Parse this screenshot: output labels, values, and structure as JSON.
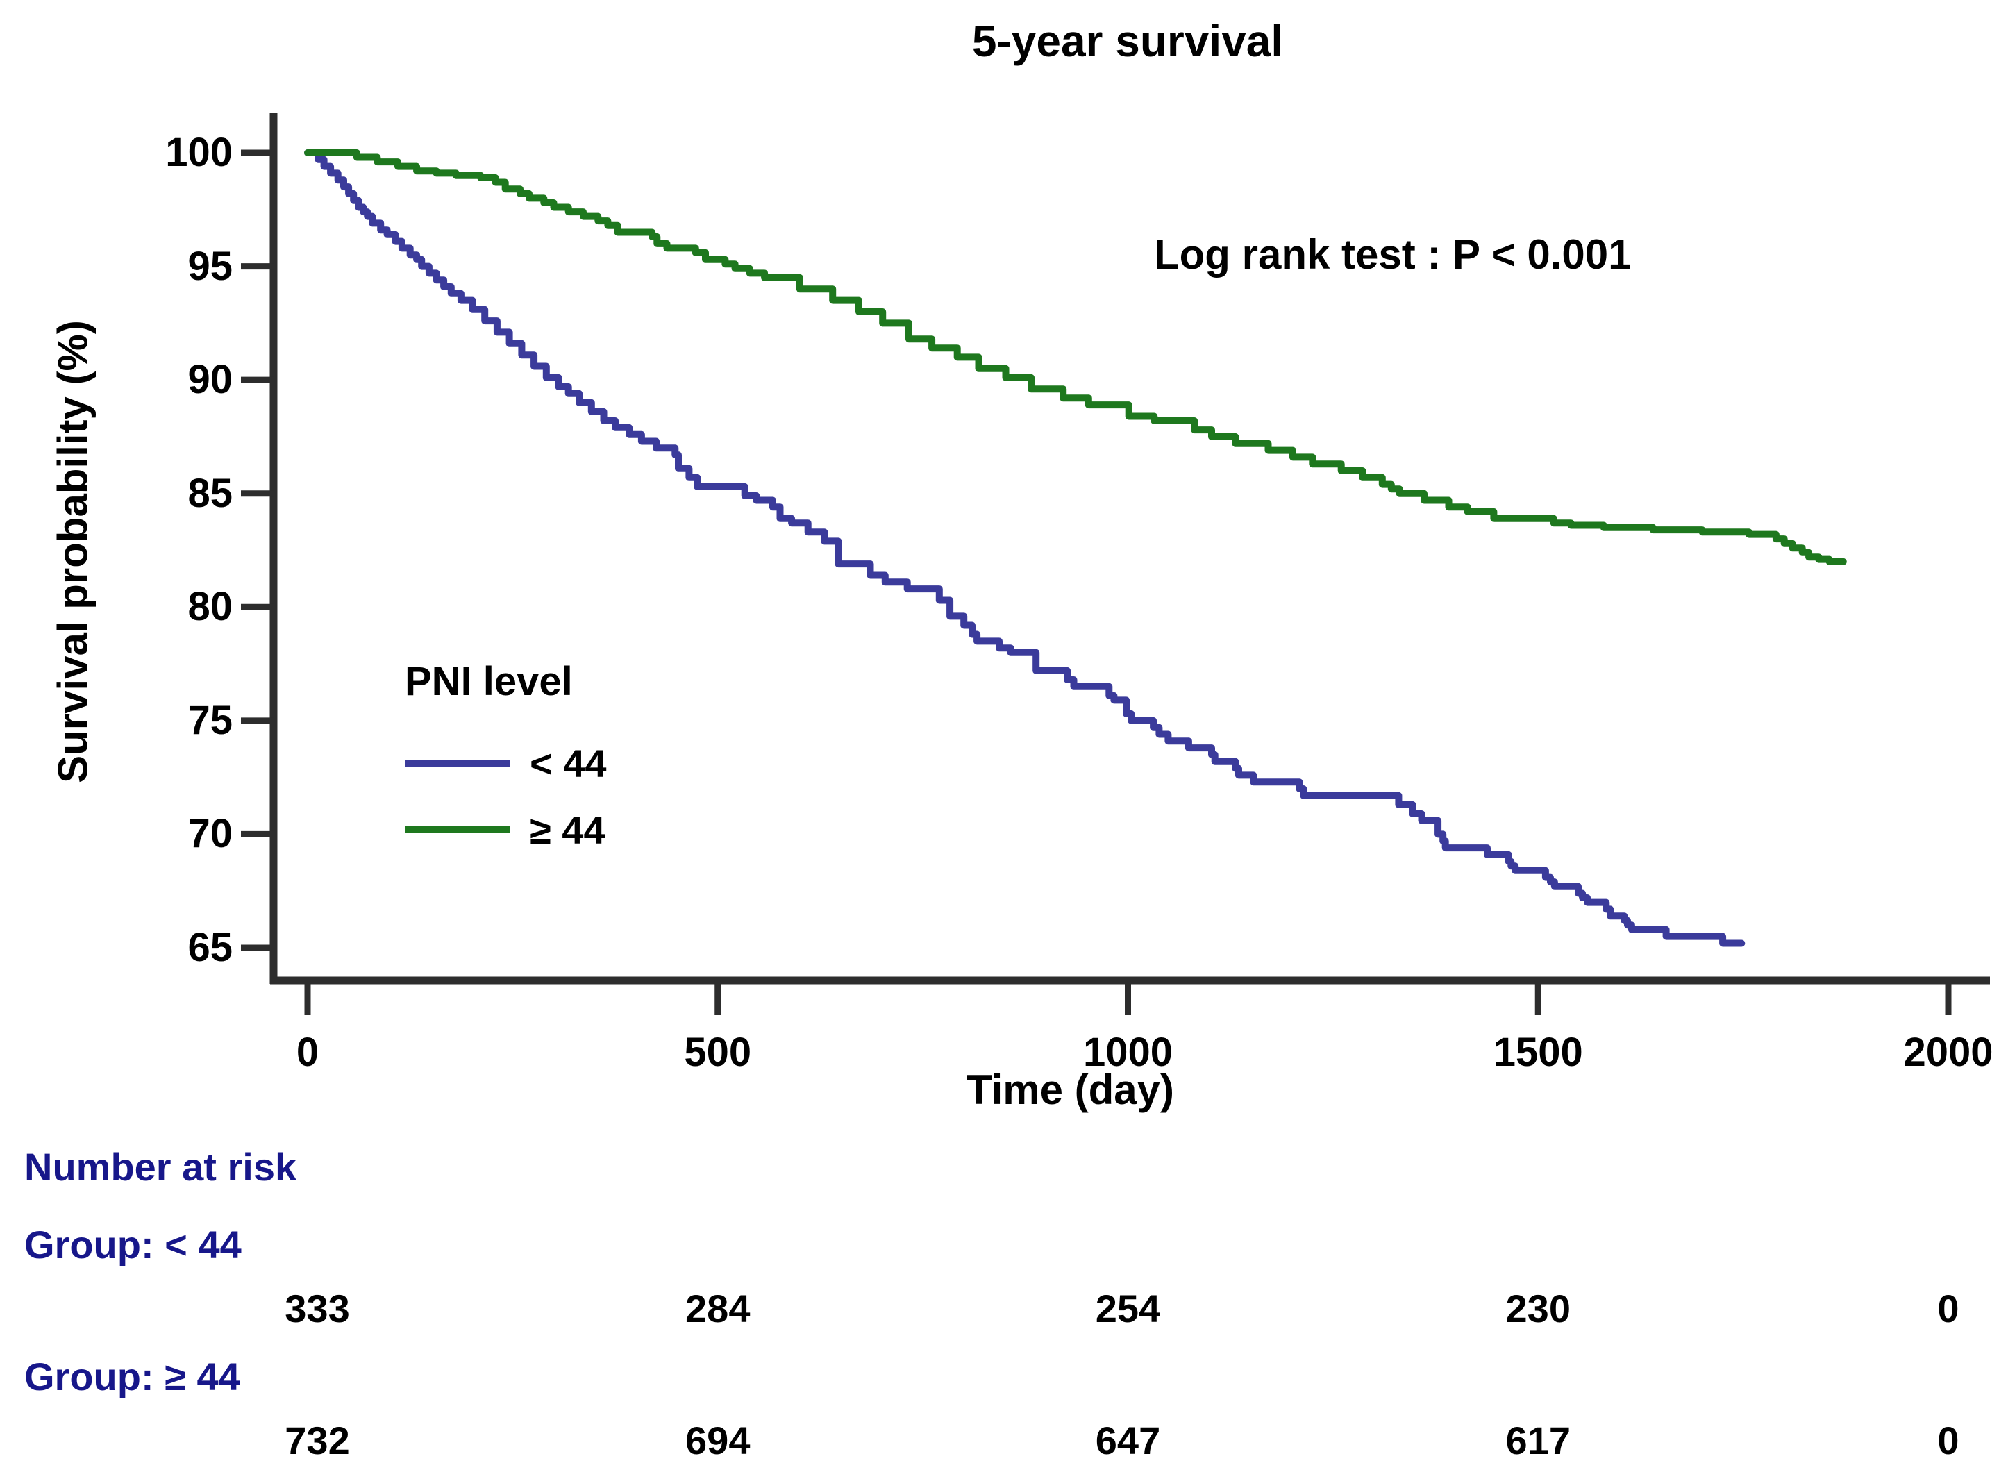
{
  "title": "5-year survival",
  "annotation": {
    "logrank_text": "Log rank test : P < 0.001"
  },
  "axes": {
    "y_label": "Survival probability (%)",
    "x_label": "Time (day)",
    "y_ticks": [
      100,
      95,
      90,
      85,
      80,
      75,
      70,
      65
    ],
    "x_ticks": [
      0,
      500,
      1000,
      1500,
      2000
    ]
  },
  "legend": {
    "title": "PNI level",
    "items": [
      {
        "label": "< 44",
        "color": "#3b3b9b"
      },
      {
        "label": "≥ 44",
        "color": "#1e781e"
      }
    ]
  },
  "risk_table": {
    "header": "Number at risk",
    "groups": [
      {
        "label": "Group: < 44",
        "counts": [
          "333",
          "284",
          "254",
          "230",
          "0"
        ]
      },
      {
        "label": "Group: ≥ 44",
        "counts": [
          "732",
          "694",
          "647",
          "617",
          "0"
        ]
      }
    ]
  },
  "colors": {
    "curve_lt44": "#3b3b9b",
    "curve_ge44": "#1e781e",
    "axis": "#2d2d2d",
    "risk_label_navy": "#17178a",
    "text": "#000000"
  },
  "chart_data": {
    "type": "line",
    "subtype": "kaplan-meier-step",
    "title": "5-year survival",
    "xlabel": "Time (day)",
    "ylabel": "Survival probability (%)",
    "xlim": [
      0,
      2000
    ],
    "ylim": [
      65,
      100
    ],
    "grid": false,
    "legend_position": "inside-left-middle",
    "series": [
      {
        "name": "< 44",
        "color": "#3b3b9b",
        "points": [
          [
            0,
            100
          ],
          [
            13,
            99.7
          ],
          [
            20,
            99.4
          ],
          [
            28,
            99.1
          ],
          [
            37,
            98.8
          ],
          [
            44,
            98.5
          ],
          [
            50,
            98.2
          ],
          [
            56,
            97.9
          ],
          [
            62,
            97.6
          ],
          [
            68,
            97.4
          ],
          [
            73,
            97.2
          ],
          [
            79,
            96.9
          ],
          [
            89,
            96.6
          ],
          [
            97,
            96.4
          ],
          [
            107,
            96.1
          ],
          [
            115,
            95.8
          ],
          [
            125,
            95.5
          ],
          [
            133,
            95.3
          ],
          [
            139,
            95.0
          ],
          [
            148,
            94.7
          ],
          [
            157,
            94.4
          ],
          [
            166,
            94.1
          ],
          [
            175,
            93.8
          ],
          [
            187,
            93.5
          ],
          [
            201,
            93.1
          ],
          [
            216,
            92.6
          ],
          [
            231,
            92.1
          ],
          [
            246,
            91.6
          ],
          [
            261,
            91.1
          ],
          [
            276,
            90.6
          ],
          [
            291,
            90.1
          ],
          [
            306,
            89.7
          ],
          [
            318,
            89.4
          ],
          [
            331,
            89.0
          ],
          [
            346,
            88.6
          ],
          [
            361,
            88.2
          ],
          [
            375,
            87.9
          ],
          [
            392,
            87.6
          ],
          [
            407,
            87.3
          ],
          [
            425,
            87.0
          ],
          [
            448,
            86.7
          ],
          [
            452,
            86.1
          ],
          [
            465,
            85.7
          ],
          [
            475,
            85.3
          ],
          [
            533,
            84.9
          ],
          [
            547,
            84.7
          ],
          [
            567,
            84.4
          ],
          [
            576,
            83.9
          ],
          [
            590,
            83.7
          ],
          [
            610,
            83.3
          ],
          [
            630,
            82.9
          ],
          [
            647,
            81.9
          ],
          [
            686,
            81.4
          ],
          [
            704,
            81.1
          ],
          [
            731,
            80.8
          ],
          [
            770,
            80.3
          ],
          [
            783,
            79.6
          ],
          [
            800,
            79.2
          ],
          [
            810,
            78.8
          ],
          [
            816,
            78.5
          ],
          [
            843,
            78.2
          ],
          [
            857,
            78.0
          ],
          [
            888,
            77.2
          ],
          [
            926,
            76.8
          ],
          [
            934,
            76.5
          ],
          [
            977,
            76.1
          ],
          [
            983,
            75.9
          ],
          [
            998,
            75.3
          ],
          [
            1004,
            75.0
          ],
          [
            1031,
            74.7
          ],
          [
            1038,
            74.4
          ],
          [
            1049,
            74.1
          ],
          [
            1074,
            73.8
          ],
          [
            1102,
            73.5
          ],
          [
            1106,
            73.2
          ],
          [
            1131,
            72.9
          ],
          [
            1135,
            72.6
          ],
          [
            1153,
            72.3
          ],
          [
            1209,
            72.0
          ],
          [
            1214,
            71.7
          ],
          [
            1330,
            71.3
          ],
          [
            1347,
            70.9
          ],
          [
            1358,
            70.6
          ],
          [
            1378,
            70.0
          ],
          [
            1384,
            69.7
          ],
          [
            1387,
            69.4
          ],
          [
            1438,
            69.1
          ],
          [
            1464,
            68.8
          ],
          [
            1467,
            68.6
          ],
          [
            1472,
            68.4
          ],
          [
            1509,
            68.1
          ],
          [
            1515,
            67.9
          ],
          [
            1520,
            67.7
          ],
          [
            1549,
            67.4
          ],
          [
            1554,
            67.2
          ],
          [
            1560,
            67.0
          ],
          [
            1583,
            66.7
          ],
          [
            1588,
            66.4
          ],
          [
            1605,
            66.2
          ],
          [
            1609,
            66.0
          ],
          [
            1614,
            65.8
          ],
          [
            1656,
            65.5
          ],
          [
            1725,
            65.2
          ],
          [
            1748,
            65.2
          ]
        ]
      },
      {
        "name": "≥ 44",
        "color": "#1e781e",
        "points": [
          [
            0,
            100
          ],
          [
            60,
            99.8
          ],
          [
            85,
            99.6
          ],
          [
            110,
            99.4
          ],
          [
            133,
            99.2
          ],
          [
            157,
            99.1
          ],
          [
            181,
            99.0
          ],
          [
            211,
            98.9
          ],
          [
            229,
            98.7
          ],
          [
            241,
            98.4
          ],
          [
            259,
            98.2
          ],
          [
            270,
            98.0
          ],
          [
            288,
            97.8
          ],
          [
            300,
            97.6
          ],
          [
            318,
            97.4
          ],
          [
            336,
            97.2
          ],
          [
            354,
            97.0
          ],
          [
            366,
            96.8
          ],
          [
            378,
            96.5
          ],
          [
            420,
            96.3
          ],
          [
            426,
            96.0
          ],
          [
            438,
            95.8
          ],
          [
            473,
            95.6
          ],
          [
            485,
            95.3
          ],
          [
            509,
            95.1
          ],
          [
            521,
            94.9
          ],
          [
            539,
            94.7
          ],
          [
            557,
            94.5
          ],
          [
            600,
            94.0
          ],
          [
            640,
            93.5
          ],
          [
            672,
            93.0
          ],
          [
            701,
            92.5
          ],
          [
            733,
            91.8
          ],
          [
            761,
            91.4
          ],
          [
            792,
            91.0
          ],
          [
            818,
            90.5
          ],
          [
            851,
            90.1
          ],
          [
            882,
            89.6
          ],
          [
            921,
            89.2
          ],
          [
            952,
            88.9
          ],
          [
            1001,
            88.4
          ],
          [
            1032,
            88.2
          ],
          [
            1081,
            87.8
          ],
          [
            1102,
            87.5
          ],
          [
            1131,
            87.2
          ],
          [
            1171,
            86.9
          ],
          [
            1201,
            86.6
          ],
          [
            1225,
            86.3
          ],
          [
            1260,
            86.0
          ],
          [
            1286,
            85.7
          ],
          [
            1310,
            85.4
          ],
          [
            1321,
            85.2
          ],
          [
            1331,
            85.0
          ],
          [
            1361,
            84.7
          ],
          [
            1391,
            84.4
          ],
          [
            1414,
            84.2
          ],
          [
            1446,
            83.9
          ],
          [
            1519,
            83.7
          ],
          [
            1540,
            83.6
          ],
          [
            1580,
            83.5
          ],
          [
            1640,
            83.4
          ],
          [
            1700,
            83.3
          ],
          [
            1757,
            83.2
          ],
          [
            1790,
            83.0
          ],
          [
            1800,
            82.8
          ],
          [
            1810,
            82.6
          ],
          [
            1822,
            82.4
          ],
          [
            1830,
            82.2
          ],
          [
            1842,
            82.1
          ],
          [
            1855,
            82.0
          ],
          [
            1872,
            82.0
          ]
        ]
      }
    ],
    "risk_table": {
      "times": [
        0,
        500,
        1000,
        1500,
        2000
      ],
      "groups": [
        {
          "name": "< 44",
          "at_risk": [
            333,
            284,
            254,
            230,
            0
          ]
        },
        {
          "name": "≥ 44",
          "at_risk": [
            732,
            694,
            647,
            617,
            0
          ]
        }
      ]
    }
  }
}
